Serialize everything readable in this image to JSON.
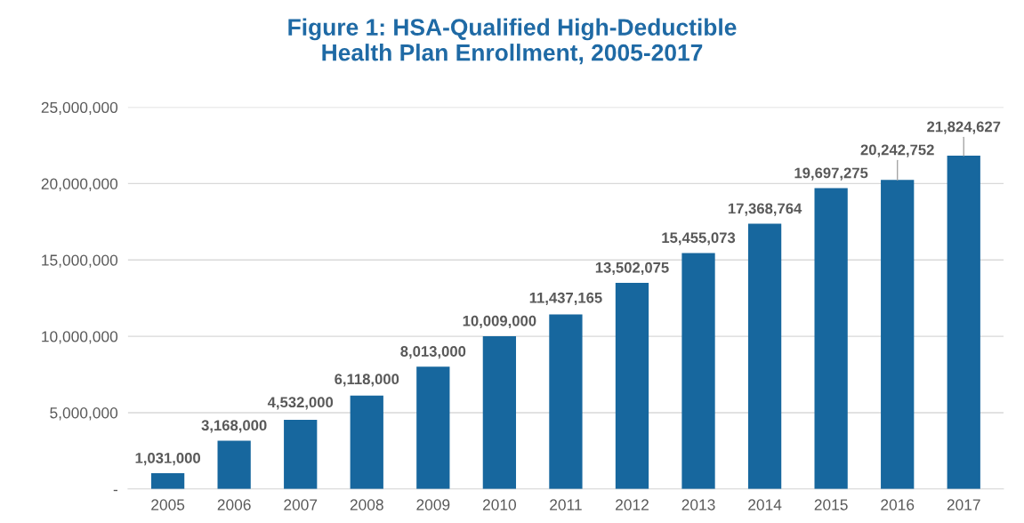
{
  "chart_data": {
    "type": "bar",
    "title": "Figure 1: HSA-Qualified High-Deductible\nHealth Plan Enrollment, 2005-2017",
    "categories": [
      "2005",
      "2006",
      "2007",
      "2008",
      "2009",
      "2010",
      "2011",
      "2012",
      "2013",
      "2014",
      "2015",
      "2016",
      "2017"
    ],
    "values": [
      1031000,
      3168000,
      4532000,
      6118000,
      8013000,
      10009000,
      11437165,
      13502075,
      15455073,
      17368764,
      19697275,
      20242752,
      21824627
    ],
    "color": "#17679e",
    "ylim": [
      0,
      25000000
    ],
    "yticks": [
      {
        "value": 0,
        "label": "-"
      },
      {
        "value": 5000000,
        "label": "5,000,000"
      },
      {
        "value": 10000000,
        "label": "10,000,000"
      },
      {
        "value": 15000000,
        "label": "15,000,000"
      },
      {
        "value": 20000000,
        "label": "20,000,000"
      },
      {
        "value": 25000000,
        "label": "25,000,000"
      }
    ],
    "value_labels": [
      "1,031,000",
      "3,168,000",
      "4,532,000",
      "6,118,000",
      "8,013,000",
      "10,009,000",
      "11,437,165",
      "13,502,075",
      "15,455,073",
      "17,368,764",
      "19,697,275",
      "20,242,752",
      "21,824,627"
    ],
    "grid": "y"
  }
}
